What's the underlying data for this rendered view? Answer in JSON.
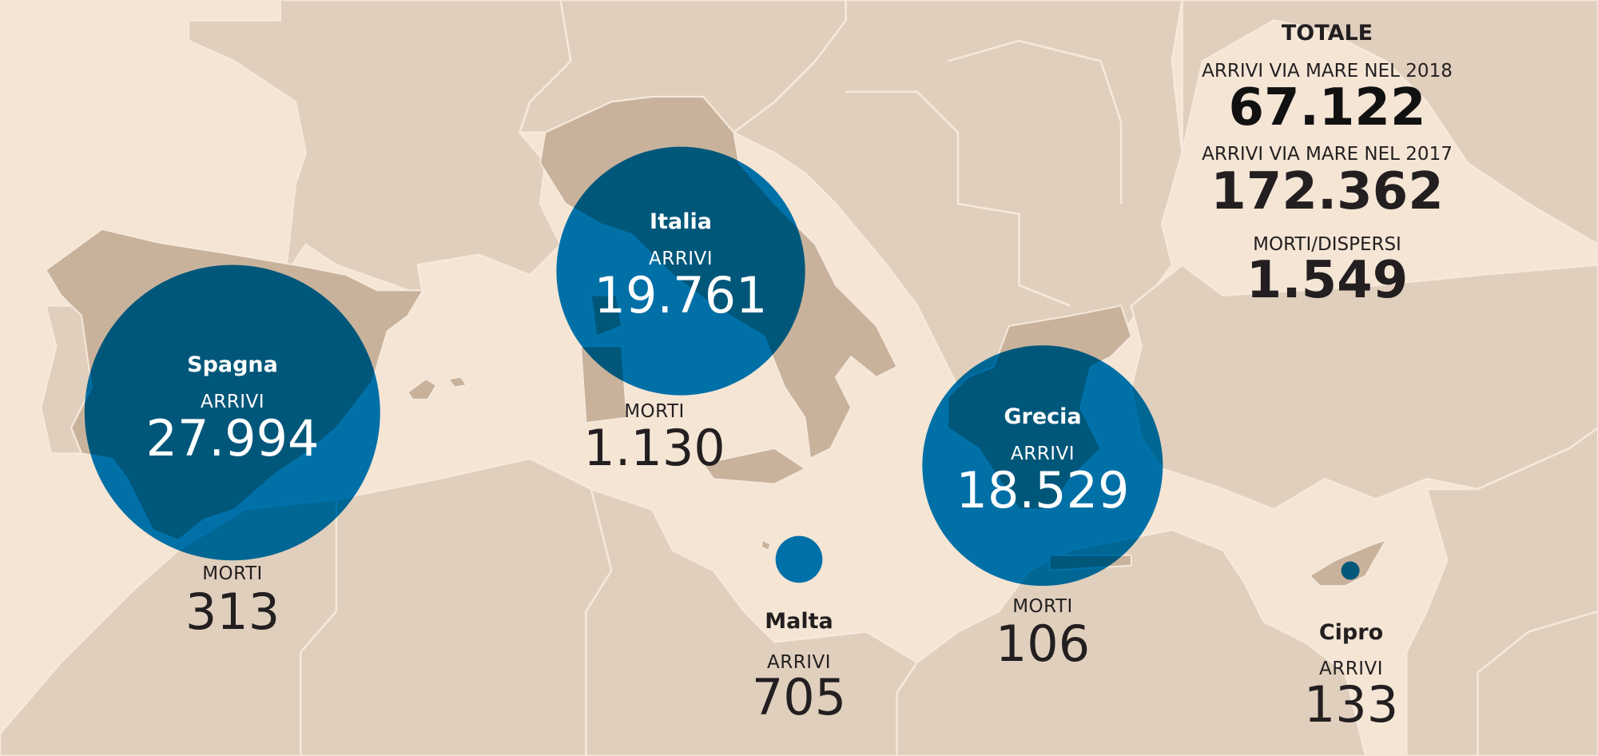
{
  "colors": {
    "sea": "#f4e5d5",
    "land": "#e0cfbd",
    "highlighted_country": "#c9b29c",
    "bubble": "#0070a8",
    "bubble_over_land": "#03587a",
    "text": "#231f20"
  },
  "totals": {
    "heading": "TOTALE",
    "arrivals_2018_label": "ARRIVI VIA MARE NEL 2018",
    "arrivals_2018": "67.122",
    "arrivals_2017_label": "ARRIVI VIA MARE NEL 2017",
    "arrivals_2017": "172.362",
    "deaths_label": "MORTI/DISPERSI",
    "deaths": "1.549"
  },
  "countries": {
    "spain": {
      "name": "Spagna",
      "arrivals_label": "ARRIVI",
      "arrivals": "27.994",
      "deaths_label": "MORTI",
      "deaths": "313",
      "arrivals_value": 27994
    },
    "italy": {
      "name": "Italia",
      "arrivals_label": "ARRIVI",
      "arrivals": "19.761",
      "deaths_label": "MORTI",
      "deaths": "1.130",
      "arrivals_value": 19761
    },
    "greece": {
      "name": "Grecia",
      "arrivals_label": "ARRIVI",
      "arrivals": "18.529",
      "deaths_label": "MORTI",
      "deaths": "106",
      "arrivals_value": 18529
    },
    "malta": {
      "name": "Malta",
      "arrivals_label": "ARRIVI",
      "arrivals": "705",
      "arrivals_value": 705
    },
    "cyprus": {
      "name": "Cipro",
      "arrivals_label": "ARRIVI",
      "arrivals": "133",
      "arrivals_value": 133
    }
  }
}
